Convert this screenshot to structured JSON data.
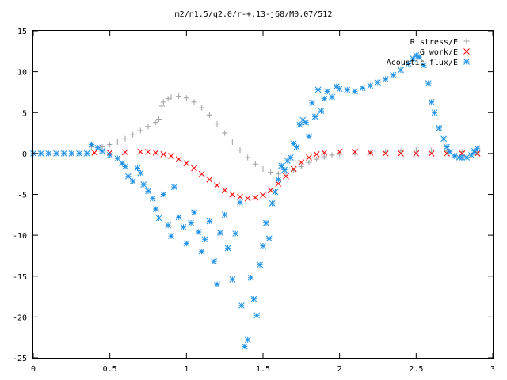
{
  "chart_data": {
    "type": "scatter",
    "title": "m2/n1.5/q2.0/r-+.13-j68/M0.07/512",
    "xlim": [
      0,
      3
    ],
    "ylim": [
      -25,
      15
    ],
    "x_ticks": [
      "0",
      "0.5",
      "1",
      "1.5",
      "2",
      "2.5",
      "3"
    ],
    "y_ticks": [
      "15",
      "10",
      "5",
      "0",
      "-5",
      "-10",
      "-15",
      "-20",
      "-25"
    ],
    "grid": false,
    "legend_position": "top-right",
    "series": [
      {
        "name": "R stress/E",
        "marker": "plus",
        "color": "#a0a0a0",
        "points": [
          [
            0.38,
            0.8
          ],
          [
            0.45,
            0.8
          ],
          [
            0.5,
            1.1
          ],
          [
            0.55,
            1.4
          ],
          [
            0.6,
            1.8
          ],
          [
            0.65,
            2.3
          ],
          [
            0.7,
            2.8
          ],
          [
            0.75,
            3.3
          ],
          [
            0.8,
            3.8
          ],
          [
            0.82,
            4.2
          ],
          [
            0.84,
            5.8
          ],
          [
            0.85,
            6.3
          ],
          [
            0.88,
            6.7
          ],
          [
            0.9,
            6.9
          ],
          [
            0.95,
            7.0
          ],
          [
            1.0,
            6.8
          ],
          [
            1.05,
            6.3
          ],
          [
            1.1,
            5.6
          ],
          [
            1.15,
            4.7
          ],
          [
            1.2,
            3.6
          ],
          [
            1.25,
            2.5
          ],
          [
            1.3,
            1.4
          ],
          [
            1.35,
            0.4
          ],
          [
            1.4,
            -0.5
          ],
          [
            1.45,
            -1.3
          ],
          [
            1.5,
            -1.9
          ],
          [
            1.55,
            -2.3
          ],
          [
            1.6,
            -2.5
          ],
          [
            1.65,
            -2.4
          ],
          [
            1.7,
            -2.1
          ],
          [
            1.75,
            -1.6
          ],
          [
            1.8,
            -1.1
          ],
          [
            1.85,
            -0.7
          ],
          [
            1.9,
            -0.4
          ],
          [
            1.95,
            -0.2
          ],
          [
            2.0,
            -0.1
          ],
          [
            2.1,
            0.0
          ],
          [
            2.2,
            0.1
          ],
          [
            2.3,
            0.2
          ],
          [
            2.4,
            0.3
          ],
          [
            2.5,
            0.4
          ],
          [
            2.6,
            0.4
          ],
          [
            2.7,
            0.3
          ],
          [
            2.8,
            0.2
          ],
          [
            2.9,
            0.1
          ]
        ]
      },
      {
        "name": "G work/E",
        "marker": "cross",
        "color": "#ff0000",
        "points": [
          [
            0.4,
            0.1
          ],
          [
            0.5,
            0.1
          ],
          [
            0.6,
            0.15
          ],
          [
            0.7,
            0.2
          ],
          [
            0.75,
            0.2
          ],
          [
            0.8,
            0.1
          ],
          [
            0.85,
            -0.1
          ],
          [
            0.9,
            -0.3
          ],
          [
            0.95,
            -0.7
          ],
          [
            1.0,
            -1.2
          ],
          [
            1.05,
            -1.8
          ],
          [
            1.1,
            -2.5
          ],
          [
            1.15,
            -3.2
          ],
          [
            1.2,
            -3.9
          ],
          [
            1.25,
            -4.5
          ],
          [
            1.3,
            -5.0
          ],
          [
            1.35,
            -5.3
          ],
          [
            1.4,
            -5.5
          ],
          [
            1.45,
            -5.4
          ],
          [
            1.5,
            -5.1
          ],
          [
            1.55,
            -4.5
          ],
          [
            1.6,
            -3.7
          ],
          [
            1.65,
            -2.8
          ],
          [
            1.7,
            -1.9
          ],
          [
            1.75,
            -1.1
          ],
          [
            1.8,
            -0.5
          ],
          [
            1.85,
            -0.1
          ],
          [
            1.9,
            0.1
          ],
          [
            2.0,
            0.2
          ],
          [
            2.1,
            0.2
          ],
          [
            2.2,
            0.1
          ],
          [
            2.3,
            0.0
          ],
          [
            2.4,
            0.0
          ],
          [
            2.5,
            0.0
          ],
          [
            2.6,
            0.0
          ],
          [
            2.7,
            0.0
          ],
          [
            2.8,
            0.0
          ],
          [
            2.9,
            0.0
          ]
        ]
      },
      {
        "name": "Acoustic flux/E",
        "marker": "star",
        "color": "#1e90e6",
        "points": [
          [
            0.0,
            0.0
          ],
          [
            0.05,
            0.0
          ],
          [
            0.1,
            0.0
          ],
          [
            0.15,
            0.0
          ],
          [
            0.2,
            0.0
          ],
          [
            0.25,
            0.0
          ],
          [
            0.3,
            0.0
          ],
          [
            0.35,
            0.0
          ],
          [
            0.38,
            1.1
          ],
          [
            0.42,
            0.7
          ],
          [
            0.45,
            0.3
          ],
          [
            0.5,
            -0.2
          ],
          [
            0.55,
            -0.6
          ],
          [
            0.58,
            -1.2
          ],
          [
            0.6,
            -1.6
          ],
          [
            0.62,
            -2.8
          ],
          [
            0.65,
            -3.4
          ],
          [
            0.68,
            -1.8
          ],
          [
            0.7,
            -2.4
          ],
          [
            0.72,
            -3.8
          ],
          [
            0.75,
            -4.6
          ],
          [
            0.78,
            -5.5
          ],
          [
            0.8,
            -6.8
          ],
          [
            0.82,
            -7.9
          ],
          [
            0.85,
            -5.0
          ],
          [
            0.88,
            -8.8
          ],
          [
            0.9,
            -10.1
          ],
          [
            0.92,
            -4.1
          ],
          [
            0.95,
            -7.8
          ],
          [
            0.98,
            -9.0
          ],
          [
            1.0,
            -11.0
          ],
          [
            1.03,
            -8.5
          ],
          [
            1.05,
            -7.2
          ],
          [
            1.08,
            -9.6
          ],
          [
            1.1,
            -12.0
          ],
          [
            1.12,
            -10.5
          ],
          [
            1.15,
            -8.3
          ],
          [
            1.18,
            -13.2
          ],
          [
            1.2,
            -16.0
          ],
          [
            1.22,
            -9.7
          ],
          [
            1.25,
            -7.5
          ],
          [
            1.27,
            -11.6
          ],
          [
            1.3,
            -15.4
          ],
          [
            1.32,
            -9.8
          ],
          [
            1.35,
            -6.0
          ],
          [
            1.36,
            -18.6
          ],
          [
            1.38,
            -23.6
          ],
          [
            1.4,
            -22.8
          ],
          [
            1.42,
            -15.2
          ],
          [
            1.44,
            -17.8
          ],
          [
            1.46,
            -19.8
          ],
          [
            1.48,
            -13.6
          ],
          [
            1.5,
            -11.3
          ],
          [
            1.52,
            -8.5
          ],
          [
            1.54,
            -10.4
          ],
          [
            1.56,
            -6.1
          ],
          [
            1.58,
            -4.7
          ],
          [
            1.6,
            -3.2
          ],
          [
            1.62,
            -1.5
          ],
          [
            1.64,
            -2.0
          ],
          [
            1.66,
            -0.9
          ],
          [
            1.68,
            -0.5
          ],
          [
            1.7,
            1.2
          ],
          [
            1.72,
            0.8
          ],
          [
            1.74,
            3.5
          ],
          [
            1.76,
            4.1
          ],
          [
            1.78,
            3.8
          ],
          [
            1.8,
            2.1
          ],
          [
            1.82,
            6.2
          ],
          [
            1.84,
            4.5
          ],
          [
            1.86,
            7.8
          ],
          [
            1.88,
            5.2
          ],
          [
            1.9,
            6.7
          ],
          [
            1.92,
            7.6
          ],
          [
            1.95,
            6.9
          ],
          [
            1.98,
            8.2
          ],
          [
            2.0,
            7.9
          ],
          [
            2.05,
            7.8
          ],
          [
            2.1,
            7.6
          ],
          [
            2.15,
            8.0
          ],
          [
            2.2,
            8.3
          ],
          [
            2.25,
            8.7
          ],
          [
            2.3,
            9.1
          ],
          [
            2.35,
            9.6
          ],
          [
            2.4,
            10.2
          ],
          [
            2.45,
            11.0
          ],
          [
            2.48,
            11.6
          ],
          [
            2.5,
            12.0
          ],
          [
            2.52,
            11.8
          ],
          [
            2.55,
            10.8
          ],
          [
            2.58,
            8.6
          ],
          [
            2.6,
            6.3
          ],
          [
            2.62,
            5.0
          ],
          [
            2.65,
            3.1
          ],
          [
            2.68,
            1.8
          ],
          [
            2.7,
            0.8
          ],
          [
            2.72,
            0.2
          ],
          [
            2.75,
            -0.3
          ],
          [
            2.78,
            -0.5
          ],
          [
            2.8,
            -0.5
          ],
          [
            2.83,
            -0.5
          ],
          [
            2.86,
            -0.2
          ],
          [
            2.88,
            0.3
          ],
          [
            2.9,
            0.6
          ]
        ]
      }
    ]
  }
}
